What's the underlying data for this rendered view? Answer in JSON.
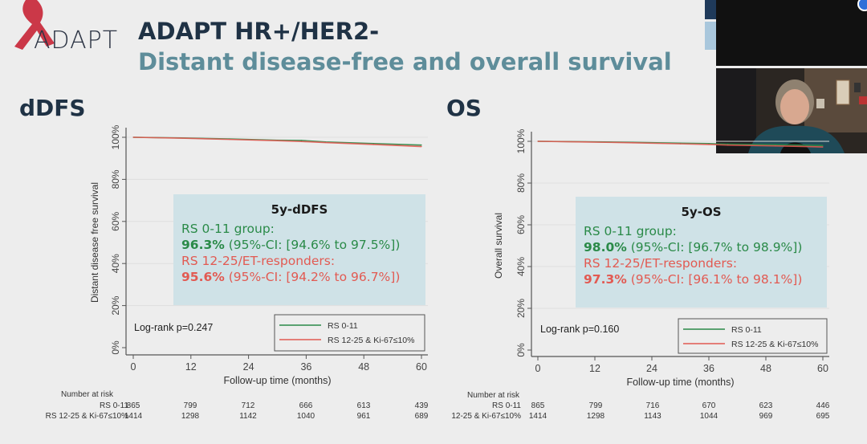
{
  "header": {
    "logo_text": "ADAPT",
    "title": "ADAPT HR+/HER2-",
    "subtitle": "Distant disease-free and overall survival"
  },
  "colors": {
    "green_series": "#2a8a48",
    "red_series": "#e25a52",
    "title_dark": "#1f3245",
    "title_teal": "#5e8d9a",
    "infobox_bg": "#cfe2e7"
  },
  "video": {
    "icons": [
      "camera-feed-empty",
      "presenter-video"
    ]
  },
  "chart_data": [
    {
      "type": "line",
      "section_label": "dDFS",
      "xlabel": "Follow-up time (months)",
      "ylabel": "Distant disease free survival",
      "x_ticks": [
        "0",
        "12",
        "24",
        "36",
        "48",
        "60"
      ],
      "y_ticks": [
        "0%",
        "20%",
        "40%",
        "60%",
        "80%",
        "100%"
      ],
      "xlim": [
        0,
        60
      ],
      "ylim": [
        0,
        100
      ],
      "grid": true,
      "legend_position": "bottom-right",
      "series": [
        {
          "name": "RS 0-11",
          "color": "#2a8a48",
          "x": [
            0,
            10,
            20,
            30,
            35,
            40,
            50,
            60
          ],
          "y": [
            100,
            99.7,
            99.2,
            98.6,
            98.5,
            97.8,
            97.0,
            96.3
          ]
        },
        {
          "name": "RS 12-25 & Ki-67≤10%",
          "color": "#e25a52",
          "x": [
            0,
            10,
            20,
            30,
            35,
            40,
            50,
            60
          ],
          "y": [
            100,
            99.6,
            99.0,
            98.4,
            98.0,
            97.5,
            96.6,
            95.6
          ]
        }
      ],
      "annotation": "Log-rank p=0.247",
      "infobox": {
        "title": "5y-dDFS",
        "group1_label": "RS 0-11 group:",
        "group1_value": "96.3%",
        "group1_ci": " (95%-CI: [94.6% to 97.5%])",
        "group2_label": "RS 12-25/ET-responders:",
        "group2_value": "95.6%",
        "group2_ci": " (95%-CI: [94.2% to 96.7%])"
      },
      "risk_table": {
        "title": "Number at risk",
        "rows": [
          {
            "label": "RS 0-11",
            "values": [
              "865",
              "799",
              "712",
              "666",
              "613",
              "439"
            ]
          },
          {
            "label": "RS 12-25 & Ki-67≤10%",
            "values": [
              "1414",
              "1298",
              "1142",
              "1040",
              "961",
              "689"
            ]
          }
        ]
      }
    },
    {
      "type": "line",
      "section_label": "OS",
      "xlabel": "Follow-up time (months)",
      "ylabel": "Overall survival",
      "x_ticks": [
        "0",
        "12",
        "24",
        "36",
        "48",
        "60"
      ],
      "y_ticks": [
        "0%",
        "20%",
        "40%",
        "60%",
        "80%",
        "100%"
      ],
      "xlim": [
        0,
        60
      ],
      "ylim": [
        0,
        100
      ],
      "grid": true,
      "legend_position": "bottom-right",
      "series": [
        {
          "name": "RS 0-11",
          "color": "#2a8a48",
          "x": [
            0,
            10,
            20,
            30,
            36,
            40,
            50,
            60
          ],
          "y": [
            100,
            99.8,
            99.5,
            99.1,
            98.9,
            98.7,
            98.4,
            98.0
          ]
        },
        {
          "name": "RS 12-25 & Ki-67≤10%",
          "color": "#e25a52",
          "x": [
            0,
            10,
            20,
            30,
            36,
            40,
            50,
            60
          ],
          "y": [
            100,
            99.7,
            99.3,
            98.8,
            98.5,
            98.2,
            97.8,
            97.3
          ]
        }
      ],
      "annotation": "Log-rank p=0.160",
      "infobox": {
        "title": "5y-OS",
        "group1_label": "RS 0-11 group:",
        "group1_value": "98.0%",
        "group1_ci": " (95%-CI: [96.7% to 98.9%])",
        "group2_label": "RS 12-25/ET-responders:",
        "group2_value": "97.3%",
        "group2_ci": " (95%-CI: [96.1% to 98.1%])"
      },
      "risk_table": {
        "title": "Number at risk",
        "rows": [
          {
            "label": "RS 0-11",
            "values": [
              "865",
              "799",
              "716",
              "670",
              "623",
              "446"
            ]
          },
          {
            "label": "12-25 & Ki-67≤10%",
            "values": [
              "1414",
              "1298",
              "1143",
              "1044",
              "969",
              "695"
            ]
          }
        ]
      }
    }
  ]
}
